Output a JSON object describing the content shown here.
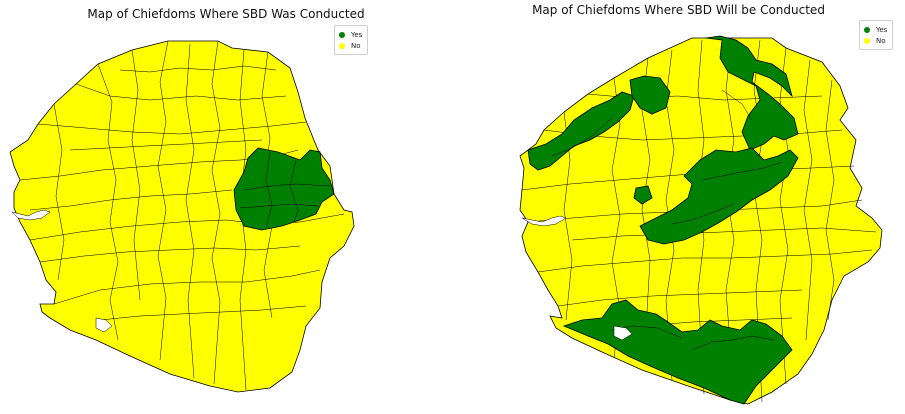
{
  "colors": {
    "yes": "#008000",
    "no": "#ffff00",
    "border": "#000000"
  },
  "maps": [
    {
      "title": "Map of Chiefdoms Where SBD Was Conducted",
      "legend": [
        {
          "label": "Yes",
          "color": "#008000"
        },
        {
          "label": "No",
          "color": "#ffff00"
        }
      ]
    },
    {
      "title": "Map of Chiefdoms Where SBD Will be Conducted",
      "legend": [
        {
          "label": "Yes",
          "color": "#008000"
        },
        {
          "label": "No",
          "color": "#ffff00"
        }
      ]
    }
  ]
}
